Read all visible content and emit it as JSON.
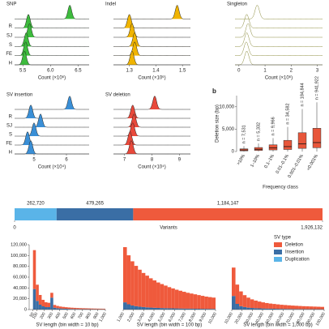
{
  "chart_data": [
    {
      "type": "ridgeline",
      "title": "SNP",
      "xlabel": "Count (×10⁶)",
      "color": "#3dbb3d",
      "fill": true,
      "xlim": [
        5.35,
        6.7
      ],
      "xticks": [
        5.5,
        {
          "value": 6,
          "label": "6.0"
        },
        6.5
      ],
      "row_labels": [
        null,
        "R",
        "SJ",
        "S",
        "FE",
        "H"
      ],
      "peaks": [
        6.35,
        5.6,
        5.62,
        5.56,
        5.55,
        5.53
      ]
    },
    {
      "type": "ridgeline",
      "title": "Indel",
      "xlabel": "Count (×10⁶)",
      "color": "#f0b400",
      "fill": true,
      "xlim": [
        1.24,
        1.53
      ],
      "xticks": [
        1.3,
        1.4,
        1.5
      ],
      "peaks": [
        1.48,
        1.3,
        1.31,
        1.32,
        1.32,
        1.31
      ]
    },
    {
      "type": "ridgeline",
      "title": "Singleton",
      "xlabel": "Count (×10⁶)",
      "color": "#8a8a3a",
      "fill": false,
      "xlim": [
        -0.15,
        3.2
      ],
      "xticks": [
        0,
        1,
        2,
        3
      ],
      "peaks": [
        0.7,
        0.3,
        0.35,
        0.3,
        0.28,
        0.3
      ]
    },
    {
      "type": "ridgeline",
      "title": "SV insertion",
      "xlabel": "Count (×10⁴)",
      "color": "#3a8fd6",
      "fill": true,
      "xlim": [
        4.4,
        6.7
      ],
      "xticks": [
        5,
        6
      ],
      "row_labels": [
        null,
        "R",
        "SJ",
        "S",
        "FE",
        "H"
      ],
      "peaks": [
        6.1,
        4.9,
        5.2,
        5.0,
        4.8,
        4.9
      ]
    },
    {
      "type": "ridgeline",
      "title": "SV deletion",
      "xlabel": "Count (×10⁴)",
      "color": "#e8483a",
      "fill": true,
      "xlim": [
        6.6,
        9.4
      ],
      "xticks": [
        7,
        8,
        9
      ],
      "peaks": [
        8.1,
        7.3,
        7.35,
        7.3,
        7.2,
        7.25
      ]
    },
    {
      "type": "box",
      "label": "b",
      "ylabel": "Deletion size (bp)",
      "xlabel": "Frequency class",
      "color": "#e8563a",
      "categories": [
        ">10%",
        "1–10%",
        "0.1–1%",
        "0.01–0.1%",
        "0.001–0.01%",
        "<0.001%"
      ],
      "n_labels": [
        "n = 7,531",
        "n = 5,332",
        "n = 9,966",
        "n = 34,582",
        "n = 184,844",
        "n = 941,922"
      ],
      "boxes": [
        {
          "min": 0,
          "q1": 150,
          "median": 350,
          "q3": 600,
          "max": 1200
        },
        {
          "min": 0,
          "q1": 250,
          "median": 500,
          "q3": 900,
          "max": 1800
        },
        {
          "min": 0,
          "q1": 350,
          "median": 800,
          "q3": 1500,
          "max": 3000
        },
        {
          "min": 0,
          "q1": 450,
          "median": 1100,
          "q3": 2500,
          "max": 5500
        },
        {
          "min": 0,
          "q1": 700,
          "median": 1700,
          "q3": 4200,
          "max": 9500
        },
        {
          "min": 0,
          "q1": 850,
          "median": 2000,
          "q3": 5200,
          "max": 11000
        }
      ],
      "ylim": [
        0,
        12500
      ],
      "yticks": [
        0,
        {
          "value": 5000,
          "label": "5,000"
        },
        {
          "value": 10000,
          "label": "10,000"
        }
      ]
    },
    {
      "type": "stacked-hbar",
      "xlabel": "Variants",
      "legend_title": "SV type",
      "series": [
        {
          "name": "Deletion",
          "color": "#ef5a3c",
          "values": [
            1184147
          ],
          "value_labels": [
            "1,184,147"
          ]
        },
        {
          "name": "Insertion",
          "color": "#3a6ea5",
          "values": [
            479265
          ],
          "value_labels": [
            "479,265"
          ]
        },
        {
          "name": "Duplication",
          "color": "#5ab4e8",
          "values": [
            262720
          ],
          "value_labels": [
            "262,720"
          ]
        }
      ],
      "xlim": [
        0,
        1926132
      ],
      "xticks": [
        0,
        {
          "value": 1926132,
          "label": "1,926,132"
        }
      ]
    },
    {
      "type": "histogram",
      "xlabel": "SV length (bin width = 10 bp)",
      "bins": [
        50,
        88,
        126,
        164,
        202,
        240,
        278,
        316,
        354,
        392,
        430,
        468,
        506,
        544,
        582,
        620,
        658,
        696,
        734,
        772,
        810,
        848,
        886,
        924,
        962,
        1000
      ],
      "series": [
        {
          "color": "#ef5a3c",
          "values": [
            72000,
            30000,
            18000,
            12000,
            9000,
            8000,
            9000,
            5000,
            4200,
            3600,
            3200,
            2800,
            2500,
            2300,
            2100,
            1900,
            1750,
            1600,
            1500,
            1400,
            1300,
            1200,
            1150,
            1100,
            1050
          ]
        },
        {
          "color": "#3a6ea5",
          "values": [
            38000,
            16000,
            9000,
            6000,
            4500,
            4500,
            22000,
            3500,
            2500,
            2000,
            1700,
            1500,
            1300,
            1150,
            1050,
            950,
            850,
            800,
            750,
            700,
            650,
            600,
            550,
            500,
            480
          ]
        }
      ],
      "xlim": [
        0,
        1000
      ],
      "xticks": [
        50,
        100,
        200,
        300,
        400,
        500,
        600,
        700,
        800,
        900,
        {
          "value": 1000,
          "label": "1,000"
        }
      ],
      "ylim": [
        0,
        120000
      ],
      "yticks": [
        0,
        {
          "value": 20000,
          "label": "20,000"
        },
        {
          "value": 40000,
          "label": "40,000"
        },
        {
          "value": 60000,
          "label": "60,000"
        },
        {
          "value": 80000,
          "label": "80,000"
        },
        {
          "value": 100000,
          "label": "100,000"
        },
        {
          "value": 120000,
          "label": "120,000"
        }
      ]
    },
    {
      "type": "histogram",
      "xlabel": "SV length (bin width = 100 bp)",
      "bins": [
        1000,
        1360,
        1720,
        2080,
        2440,
        2800,
        3160,
        3520,
        3880,
        4240,
        4600,
        4960,
        5320,
        5680,
        6040,
        6400,
        6760,
        7120,
        7480,
        7840,
        8200,
        8560,
        8920,
        9280,
        9640,
        10000
      ],
      "series": [
        {
          "color": "#ef5a3c",
          "values": [
            11500,
            10200,
            9200,
            8400,
            7700,
            7100,
            6600,
            6100,
            5700,
            5300,
            5000,
            4700,
            4400,
            4150,
            3900,
            3700,
            3500,
            3300,
            3150,
            3000,
            2850,
            2700,
            2550,
            2450,
            2350
          ]
        },
        {
          "color": "#3a6ea5",
          "values": [
            1500,
            1100,
            850,
            700,
            600,
            520,
            460,
            410,
            370,
            340,
            310,
            290,
            270,
            250,
            235,
            220,
            205,
            195,
            185,
            175,
            165,
            155,
            150,
            145,
            140
          ]
        }
      ],
      "xlim": [
        1000,
        10000
      ],
      "xticks": [
        {
          "value": 1000,
          "label": "1,000"
        },
        {
          "value": 2000,
          "label": "2,000"
        },
        {
          "value": 3000,
          "label": "3,000"
        },
        {
          "value": 4000,
          "label": "4,000"
        },
        {
          "value": 5000,
          "label": "5,000"
        },
        {
          "value": 6000,
          "label": "6,000"
        },
        {
          "value": 7000,
          "label": "7,000"
        },
        {
          "value": 8000,
          "label": "8,000"
        },
        {
          "value": 9000,
          "label": "9,000"
        },
        {
          "value": 10000,
          "label": "10,000"
        }
      ],
      "ylim": [
        0,
        13500
      ]
    },
    {
      "type": "histogram",
      "xlabel": "SV length (bin width = 1,000 bp)",
      "bins": [
        10000,
        13600,
        17200,
        20800,
        24400,
        28000,
        31600,
        35200,
        38800,
        42400,
        46000,
        49600,
        53200,
        56800,
        60400,
        64000,
        67600,
        71200,
        74800,
        78400,
        82000,
        85600,
        89200,
        92800,
        96400,
        100000
      ],
      "series": [
        {
          "color": "#ef5a3c",
          "values": [
            2500,
            1700,
            1300,
            1050,
            880,
            760,
            670,
            600,
            540,
            490,
            450,
            420,
            390,
            360,
            340,
            320,
            300,
            285,
            270,
            255,
            245,
            235,
            225,
            215,
            205
          ]
        },
        {
          "color": "#3a6ea5",
          "values": [
            1200,
            500,
            300,
            220,
            170,
            140,
            120,
            105,
            95,
            85,
            78,
            72,
            66,
            62,
            58,
            54,
            50,
            47,
            44,
            42,
            40,
            38,
            36,
            34,
            32
          ]
        }
      ],
      "xlim": [
        10000,
        100000
      ],
      "xticks": [
        {
          "value": 10000,
          "label": "10,000"
        },
        {
          "value": 20000,
          "label": "20,000"
        },
        {
          "value": 30000,
          "label": "30,000"
        },
        {
          "value": 40000,
          "label": "40,000"
        },
        {
          "value": 50000,
          "label": "50,000"
        },
        {
          "value": 60000,
          "label": "60,000"
        },
        {
          "value": 70000,
          "label": "70,000"
        },
        {
          "value": 80000,
          "label": "80,000"
        },
        {
          "value": 90000,
          "label": "90,000"
        },
        {
          "value": 100000,
          "label": "100,000"
        }
      ],
      "ylim": [
        0,
        4000
      ]
    }
  ]
}
